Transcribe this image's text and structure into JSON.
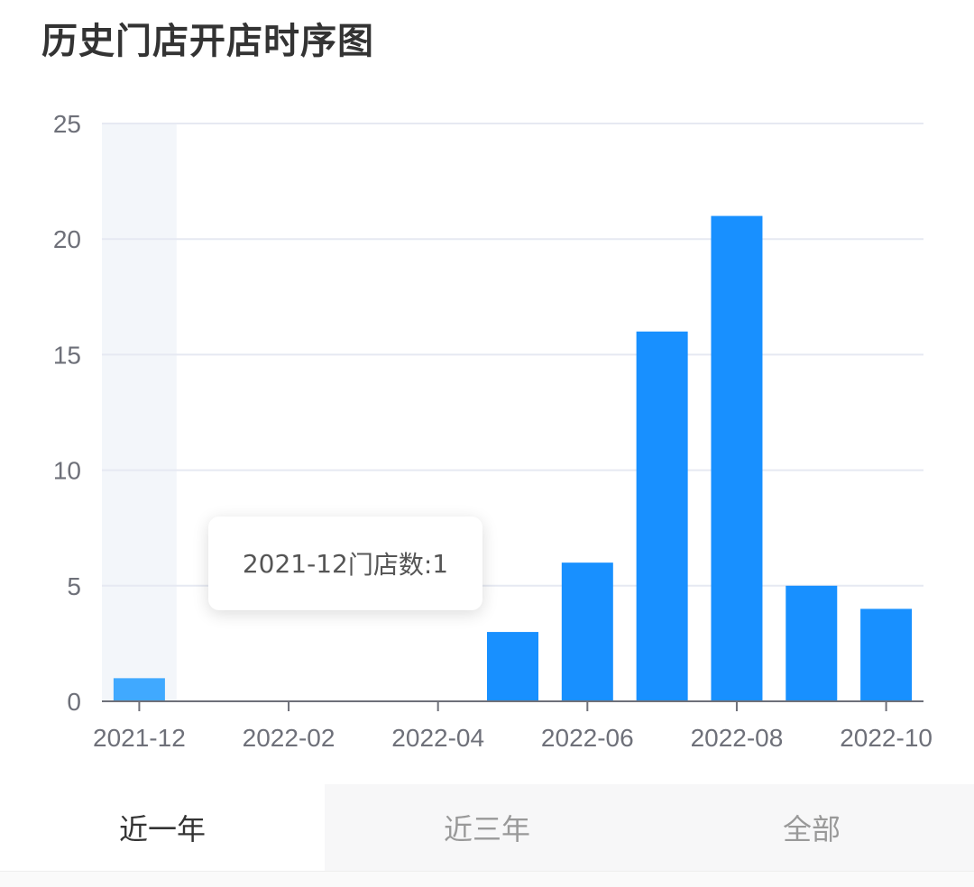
{
  "title": "历史门店开店时序图",
  "chart_data": {
    "type": "bar",
    "categories": [
      "2021-12",
      "2022-01",
      "2022-02",
      "2022-03",
      "2022-04",
      "2022-05",
      "2022-06",
      "2022-07",
      "2022-08",
      "2022-09",
      "2022-10"
    ],
    "x_tick_labels": [
      "2021-12",
      "2022-02",
      "2022-04",
      "2022-06",
      "2022-08",
      "2022-10"
    ],
    "values": [
      1,
      0,
      0,
      0,
      0,
      3,
      6,
      16,
      21,
      5,
      4
    ],
    "ylim": [
      0,
      25
    ],
    "y_ticks": [
      0,
      5,
      10,
      15,
      20,
      25
    ],
    "grid": true,
    "highlighted_category": "2021-12",
    "colors": {
      "bar": "#1890ff",
      "bar_highlight": "#40a9ff",
      "highlight_band": "#f3f6fa",
      "grid": "#e6e9f2",
      "axis": "#6e7079"
    }
  },
  "tooltip": {
    "category": "2021-12",
    "label": "门店数:",
    "value": "1"
  },
  "tabs": [
    {
      "label": "近一年",
      "active": true
    },
    {
      "label": "近三年",
      "active": false
    },
    {
      "label": "全部",
      "active": false
    }
  ]
}
